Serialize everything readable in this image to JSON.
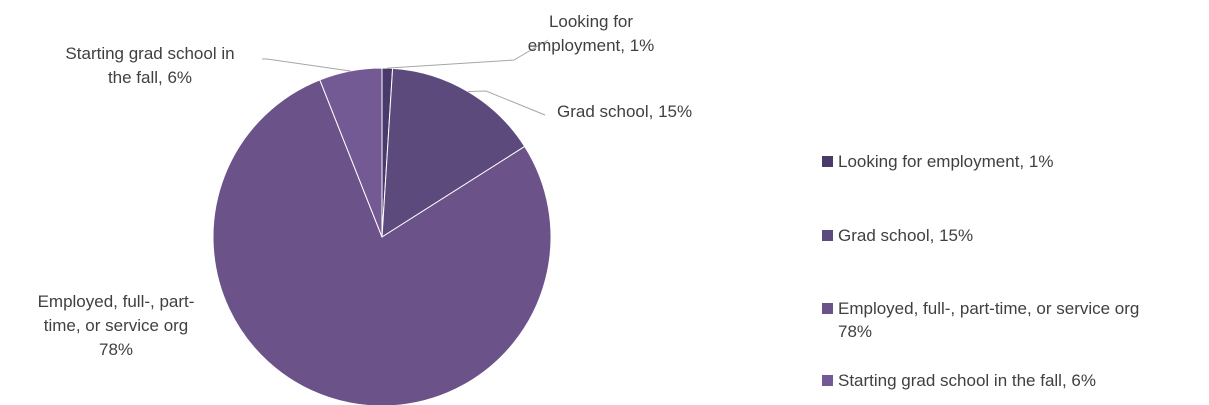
{
  "chart_data": {
    "type": "pie",
    "slices": [
      {
        "label": "Looking for employment",
        "value": 1,
        "color": "#4a3a6b"
      },
      {
        "label": "Grad school",
        "value": 15,
        "color": "#5c4a7c"
      },
      {
        "label": "Employed, full-, part-time, or service org",
        "value": 78,
        "color": "#6b5289"
      },
      {
        "label": "Starting grad school in the fall",
        "value": 6,
        "color": "#735a94"
      }
    ],
    "data_labels": [
      [
        "Looking for",
        "employment, 1%"
      ],
      [
        "Grad school, 15%"
      ],
      [
        "Employed, full-, part-",
        "time, or service org",
        "78%"
      ],
      [
        "Starting grad school in",
        "the fall, 6%"
      ]
    ],
    "legend": {
      "placement": "right",
      "entries": [
        "Looking for employment, 1%",
        "Grad school, 15%",
        "Employed, full-, part-time, or service org 78%",
        "Starting grad school in the fall, 6%"
      ]
    }
  }
}
